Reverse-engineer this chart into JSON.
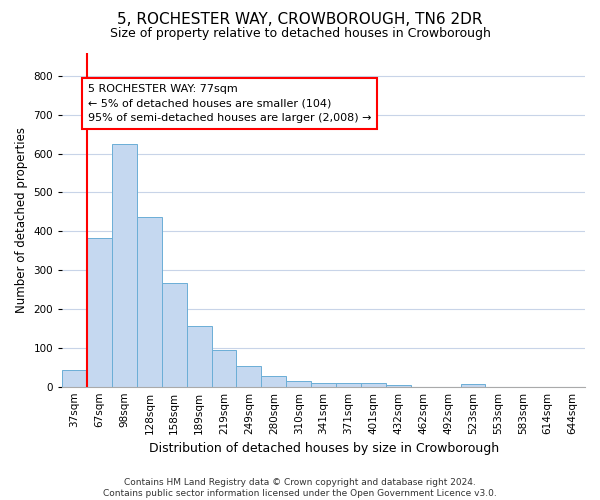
{
  "title": "5, ROCHESTER WAY, CROWBOROUGH, TN6 2DR",
  "subtitle": "Size of property relative to detached houses in Crowborough",
  "xlabel": "Distribution of detached houses by size in Crowborough",
  "ylabel": "Number of detached properties",
  "categories": [
    "37sqm",
    "67sqm",
    "98sqm",
    "128sqm",
    "158sqm",
    "189sqm",
    "219sqm",
    "249sqm",
    "280sqm",
    "310sqm",
    "341sqm",
    "371sqm",
    "401sqm",
    "432sqm",
    "462sqm",
    "492sqm",
    "523sqm",
    "553sqm",
    "583sqm",
    "614sqm",
    "644sqm"
  ],
  "bar_heights": [
    42,
    383,
    625,
    437,
    268,
    155,
    95,
    52,
    27,
    15,
    10,
    10,
    10,
    5,
    0,
    0,
    8,
    0,
    0,
    0,
    0
  ],
  "bar_color": "#c5d8f0",
  "bar_edge_color": "#6baed6",
  "red_line_x": 1.0,
  "annotation_box_text": "5 ROCHESTER WAY: 77sqm\n← 5% of detached houses are smaller (104)\n95% of semi-detached houses are larger (2,008) →",
  "ylim": [
    0,
    860
  ],
  "yticks": [
    0,
    100,
    200,
    300,
    400,
    500,
    600,
    700,
    800
  ],
  "footer_text": "Contains HM Land Registry data © Crown copyright and database right 2024.\nContains public sector information licensed under the Open Government Licence v3.0.",
  "background_color": "#ffffff",
  "grid_color": "#c8d4e8",
  "title_fontsize": 11,
  "subtitle_fontsize": 9,
  "xlabel_fontsize": 9,
  "ylabel_fontsize": 8.5,
  "annot_fontsize": 8,
  "tick_fontsize": 7.5
}
